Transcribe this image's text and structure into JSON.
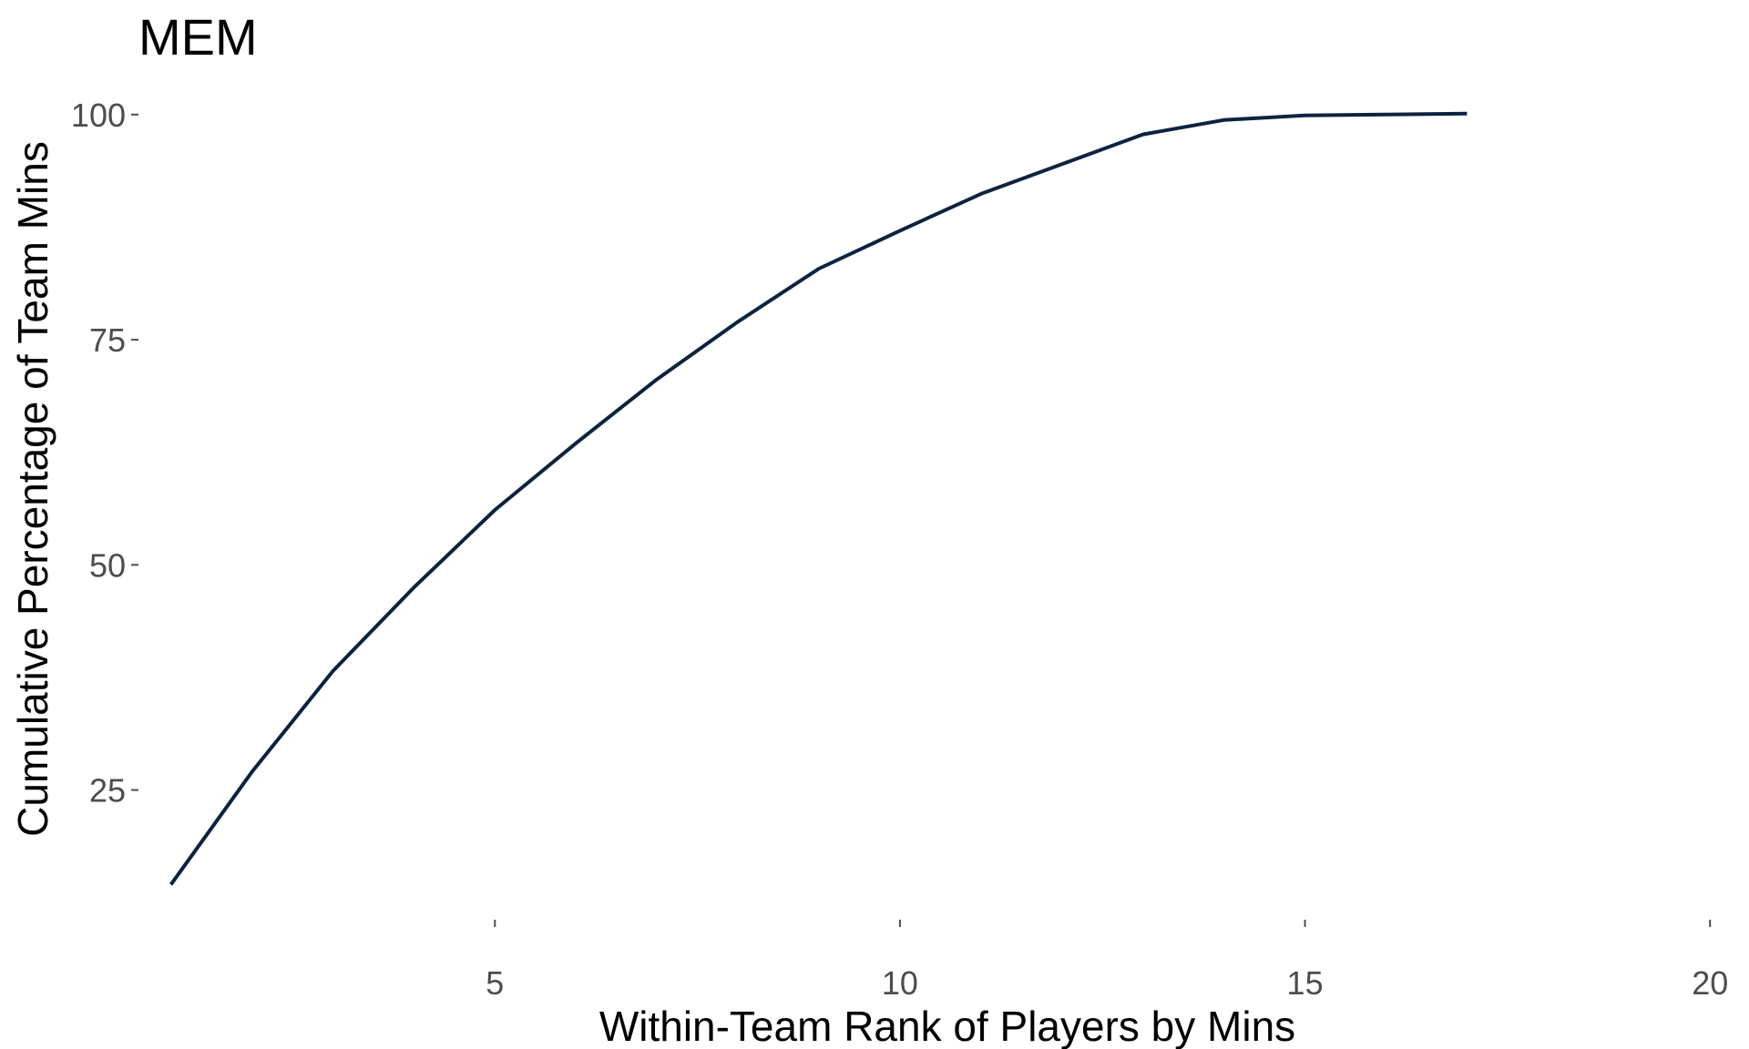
{
  "chart_data": {
    "type": "line",
    "title": "MEM",
    "xlabel": "Within-Team Rank of Players by Mins",
    "ylabel": "Cumulative Percentage of Team Mins",
    "xlim": [
      0.6,
      20.2
    ],
    "ylim": [
      10.6,
      101.5
    ],
    "x_ticks": [
      5,
      10,
      15,
      20
    ],
    "y_ticks": [
      25,
      50,
      75,
      100
    ],
    "grid": false,
    "line_color": "#0c2340",
    "series": [
      {
        "x": [
          1,
          2,
          3,
          4,
          5,
          6,
          7,
          8,
          9,
          10,
          11,
          12,
          13,
          14,
          15,
          16,
          17
        ],
        "values": [
          14.5,
          27.0,
          38.2,
          47.5,
          56.1,
          63.5,
          70.6,
          77.0,
          82.9,
          87.1,
          91.2,
          94.5,
          97.8,
          99.4,
          99.9,
          100.0,
          100.1
        ]
      }
    ]
  }
}
